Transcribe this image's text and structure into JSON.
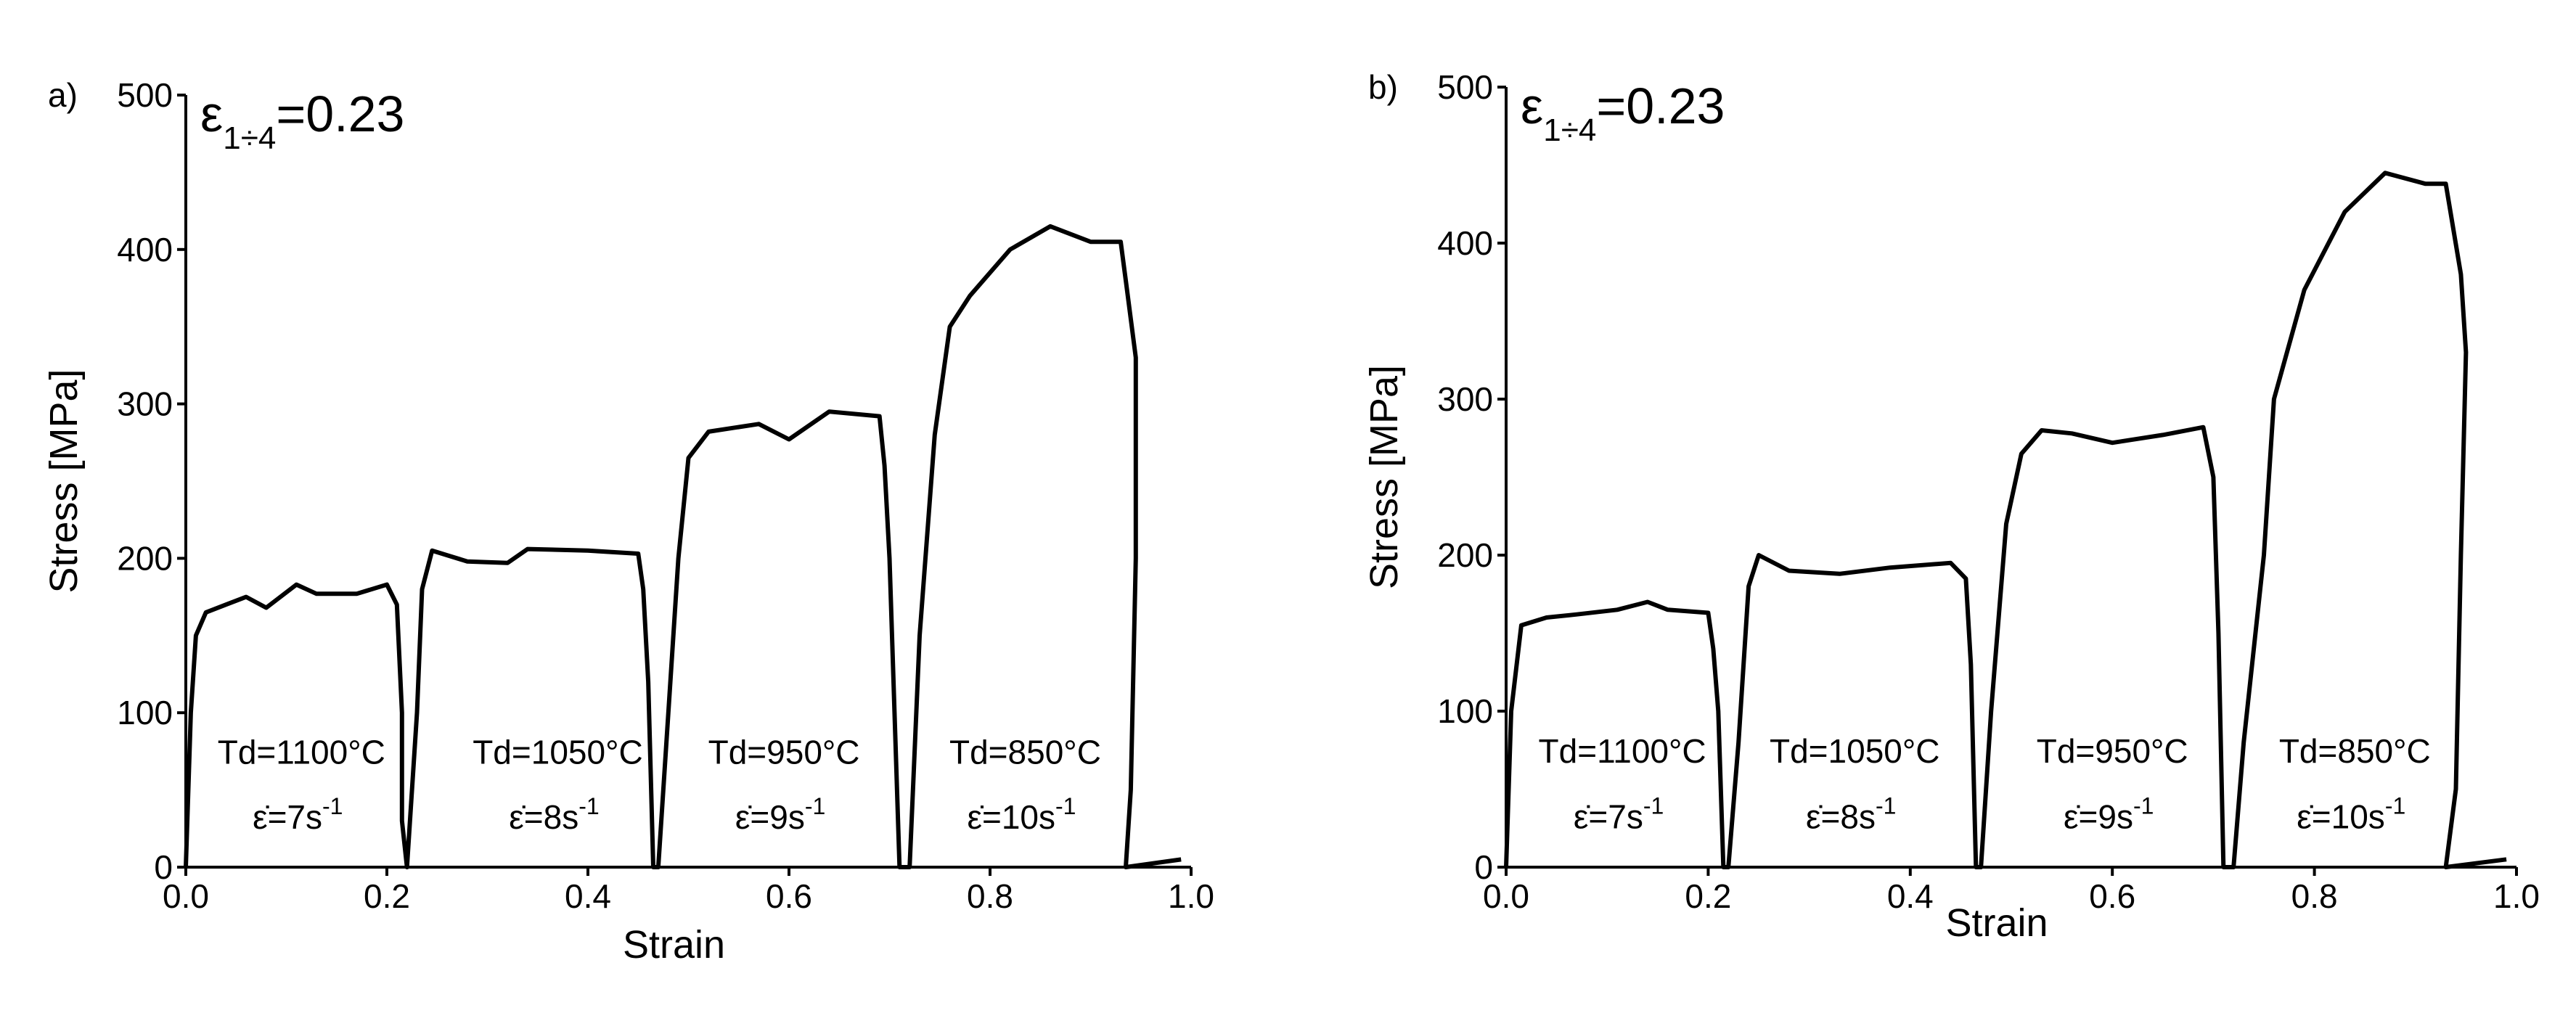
{
  "chart_data": [
    {
      "type": "line",
      "panel_label": "a)",
      "xlabel": "Strain",
      "ylabel": "Stress [MPa]",
      "strain_note": {
        "symbol": "ε",
        "subscript": "1÷4",
        "text": "=0.23"
      },
      "xlim": [
        0,
        1
      ],
      "ylim": [
        0,
        500
      ],
      "xticks": [
        {
          "value": 0,
          "label": "0.0"
        },
        0.2,
        0.4,
        0.6,
        0.8,
        {
          "value": 1,
          "label": "1.0"
        }
      ],
      "yticks": [
        0,
        100,
        200,
        300,
        400,
        500
      ],
      "pass_labels": [
        {
          "temp": "Td=1100°C",
          "rate": "ε̇=7s",
          "rate_sup": "-1"
        },
        {
          "temp": "Td=1050°C",
          "rate": "ε̇=8s",
          "rate_sup": "-1"
        },
        {
          "temp": "Td=950°C",
          "rate": "ε̇=9s",
          "rate_sup": "-1"
        },
        {
          "temp": "Td=850°C",
          "rate": "ε̇=10s",
          "rate_sup": "-1"
        }
      ],
      "x": [
        0,
        0.005,
        0.01,
        0.02,
        0.04,
        0.06,
        0.08,
        0.11,
        0.13,
        0.17,
        0.2,
        0.21,
        0.215,
        0.215,
        0.22,
        0.23,
        0.235,
        0.245,
        0.28,
        0.32,
        0.34,
        0.4,
        0.45,
        0.455,
        0.46,
        0.465,
        0.47,
        0.48,
        0.49,
        0.5,
        0.52,
        0.57,
        0.6,
        0.64,
        0.69,
        0.695,
        0.7,
        0.705,
        0.71,
        0.72,
        0.73,
        0.745,
        0.76,
        0.78,
        0.82,
        0.86,
        0.9,
        0.93,
        0.935,
        0.945,
        0.945,
        0.94,
        0.935,
        0.99
      ],
      "series": [
        {
          "color": "#000000",
          "values": [
            0,
            100,
            150,
            165,
            170,
            175,
            168,
            183,
            177,
            177,
            183,
            170,
            100,
            30,
            0,
            100,
            180,
            205,
            198,
            197,
            206,
            205,
            203,
            180,
            120,
            0,
            0,
            100,
            200,
            265,
            282,
            287,
            277,
            295,
            292,
            260,
            200,
            100,
            0,
            0,
            150,
            280,
            350,
            370,
            400,
            415,
            405,
            405,
            380,
            330,
            200,
            50,
            0,
            5
          ]
        }
      ]
    },
    {
      "type": "line",
      "panel_label": "b)",
      "xlabel": "Strain",
      "ylabel": "Stress [MPa]",
      "strain_note": {
        "symbol": "ε",
        "subscript": "1÷4",
        "text": "=0.23"
      },
      "xlim": [
        0,
        1
      ],
      "ylim": [
        0,
        500
      ],
      "xticks": [
        {
          "value": 0,
          "label": "0.0"
        },
        0.2,
        0.4,
        0.6,
        0.8,
        {
          "value": 1,
          "label": "1.0"
        }
      ],
      "yticks": [
        0,
        100,
        200,
        300,
        400,
        500
      ],
      "pass_labels": [
        {
          "temp": "Td=1100°C",
          "rate": "ε̇=7s",
          "rate_sup": "-1"
        },
        {
          "temp": "Td=1050°C",
          "rate": "ε̇=8s",
          "rate_sup": "-1"
        },
        {
          "temp": "Td=950°C",
          "rate": "ε̇=9s",
          "rate_sup": "-1"
        },
        {
          "temp": "Td=850°C",
          "rate": "ε̇=10s",
          "rate_sup": "-1"
        }
      ],
      "x": [
        0,
        0.005,
        0.015,
        0.04,
        0.07,
        0.11,
        0.14,
        0.16,
        0.2,
        0.205,
        0.21,
        0.215,
        0.22,
        0.23,
        0.24,
        0.25,
        0.28,
        0.33,
        0.38,
        0.44,
        0.455,
        0.46,
        0.465,
        0.47,
        0.48,
        0.495,
        0.51,
        0.53,
        0.56,
        0.6,
        0.65,
        0.69,
        0.7,
        0.705,
        0.71,
        0.72,
        0.73,
        0.75,
        0.76,
        0.79,
        0.83,
        0.87,
        0.91,
        0.93,
        0.945,
        0.95,
        0.945,
        0.94,
        0.93,
        0.99
      ],
      "series": [
        {
          "color": "#000000",
          "values": [
            0,
            100,
            155,
            160,
            162,
            165,
            170,
            165,
            163,
            140,
            100,
            0,
            0,
            80,
            180,
            200,
            190,
            188,
            192,
            195,
            185,
            130,
            0,
            0,
            100,
            220,
            265,
            280,
            278,
            272,
            277,
            282,
            250,
            150,
            0,
            0,
            80,
            200,
            300,
            370,
            420,
            445,
            438,
            438,
            380,
            330,
            200,
            50,
            0,
            5
          ]
        }
      ]
    }
  ]
}
